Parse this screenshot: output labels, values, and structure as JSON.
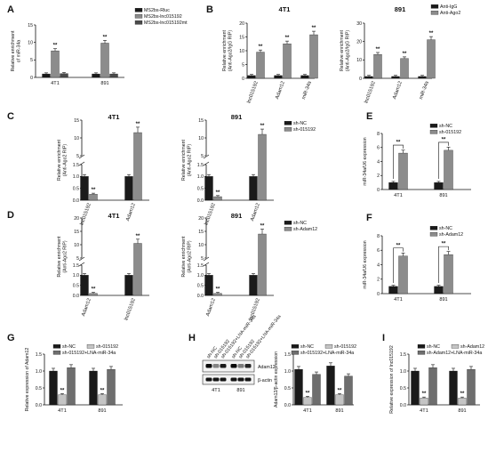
{
  "colors": {
    "black": "#1a1a1a",
    "gray": "#8c8c8c",
    "dark": "#4a4a4a",
    "light": "#c4c4c4",
    "mid": "#6e6e6e"
  },
  "chart_data": [
    {
      "id": "A",
      "letter": "A",
      "type": "bar",
      "title": "",
      "categories": [
        "4T1",
        "891"
      ],
      "series": [
        {
          "name": "MS2bs-Rluc",
          "color": "black",
          "values": [
            1.0,
            1.0
          ]
        },
        {
          "name": "MS2bs-lnc015192",
          "color": "gray",
          "values": [
            7.6,
            9.8
          ]
        },
        {
          "name": "MS2bs-lnc015192mt",
          "color": "dark",
          "values": [
            1.1,
            1.0
          ]
        }
      ],
      "sig": [
        [
          1,
          0
        ],
        [
          1,
          1
        ]
      ],
      "sigmark": "**",
      "ylabel": "Relative enrichment\nof miR-34a",
      "ylim": [
        0,
        15
      ],
      "yticks": [
        "0",
        "5",
        "10",
        "15"
      ]
    },
    {
      "id": "B1",
      "letter": "B",
      "type": "bar",
      "title": "4T1",
      "categories": [
        "lnc015192",
        "Adam12",
        "miR-34a"
      ],
      "series": [
        {
          "name": "Anti-IgG",
          "color": "black",
          "values": [
            1.0,
            1.0,
            1.0
          ]
        },
        {
          "name": "Anti-Ago2",
          "color": "gray",
          "values": [
            9.5,
            12.5,
            15.8
          ]
        }
      ],
      "sig": [
        [
          1,
          0
        ],
        [
          1,
          1
        ],
        [
          1,
          2
        ]
      ],
      "sigmark": "**",
      "ylabel": "Relative enrichment\n(Anti-Ago2/IgG RIP)",
      "ylim": [
        0,
        20
      ],
      "yticks": [
        "0",
        "5",
        "10",
        "15",
        "20"
      ]
    },
    {
      "id": "B2",
      "type": "bar",
      "title": "891",
      "categories": [
        "lnc015192",
        "Adam12",
        "miR-34a"
      ],
      "series": [
        {
          "name": "Anti-IgG",
          "color": "black",
          "values": [
            1.0,
            1.0,
            1.0
          ]
        },
        {
          "name": "Anti-Ago2",
          "color": "gray",
          "values": [
            13.0,
            10.8,
            21.0
          ]
        }
      ],
      "sig": [
        [
          1,
          0
        ],
        [
          1,
          1
        ],
        [
          1,
          2
        ]
      ],
      "sigmark": "**",
      "ylabel": "Relative enrichment\n(Anti-Ago2/IgG RIP)",
      "ylim": [
        0,
        30
      ],
      "yticks": [
        "0",
        "10",
        "20",
        "30"
      ]
    },
    {
      "id": "C1",
      "letter": "C",
      "type": "bar",
      "title": "4T1",
      "categories": [
        "lnc015192",
        "Adam12"
      ],
      "series": [
        {
          "name": "sh-NC",
          "color": "black",
          "values": [
            1.0,
            1.0
          ]
        },
        {
          "name": "sh-015192",
          "color": "gray",
          "values": [
            0.25,
            11.5
          ]
        }
      ],
      "sig": [
        [
          1,
          0
        ],
        [
          1,
          1
        ]
      ],
      "sigmark": "**",
      "broken": true,
      "ylabel": "Relative enrichment\n(Anti-Ago2 RIP)",
      "yticks": [
        "0.0",
        "0.5",
        "1.0",
        "1.5",
        "5",
        "10",
        "15"
      ]
    },
    {
      "id": "C2",
      "type": "bar",
      "title": "891",
      "categories": [
        "lnc015192",
        "Adam12"
      ],
      "series": [
        {
          "name": "sh-NC",
          "color": "black",
          "values": [
            1.0,
            1.0
          ]
        },
        {
          "name": "sh-015192",
          "color": "gray",
          "values": [
            0.15,
            11.0
          ]
        }
      ],
      "sig": [
        [
          1,
          0
        ],
        [
          1,
          1
        ]
      ],
      "sigmark": "**",
      "broken": true,
      "ylabel": "Relative enrichment\n(Anti-Ago2 RIP)",
      "yticks": [
        "0.0",
        "0.5",
        "1.0",
        "1.5",
        "5",
        "10",
        "15"
      ]
    },
    {
      "id": "D1",
      "letter": "D",
      "type": "bar",
      "title": "4T1",
      "categories": [
        "Adam12",
        "lnc015192"
      ],
      "series": [
        {
          "name": "sh-NC",
          "color": "black",
          "values": [
            1.0,
            1.0
          ]
        },
        {
          "name": "sh-Adam12",
          "color": "gray",
          "values": [
            0.1,
            10.5
          ]
        }
      ],
      "sig": [
        [
          1,
          0
        ],
        [
          1,
          1
        ]
      ],
      "sigmark": "**",
      "broken": true,
      "ylabel": "Relative enrichment\n(Anti-Ago2 RIP)",
      "yticks": [
        "0.0",
        "0.5",
        "1.0",
        "1.5",
        "5",
        "10",
        "15",
        "20"
      ]
    },
    {
      "id": "D2",
      "type": "bar",
      "title": "891",
      "categories": [
        "Adam12",
        "lnc015192"
      ],
      "series": [
        {
          "name": "sh-NC",
          "color": "black",
          "values": [
            1.0,
            1.0
          ]
        },
        {
          "name": "sh-Adam12",
          "color": "gray",
          "values": [
            0.1,
            14.0
          ]
        }
      ],
      "sig": [
        [
          1,
          0
        ],
        [
          1,
          1
        ]
      ],
      "sigmark": "**",
      "broken": true,
      "ylabel": "Relative enrichment\n(Anti-Ago2 RIP)",
      "yticks": [
        "0.0",
        "0.5",
        "1.0",
        "1.5",
        "5",
        "10",
        "15",
        "20"
      ]
    },
    {
      "id": "E",
      "letter": "E",
      "type": "bar",
      "title": "",
      "categories": [
        "4T1",
        "891"
      ],
      "series": [
        {
          "name": "sh-NC",
          "color": "black",
          "values": [
            1.0,
            1.0
          ]
        },
        {
          "name": "sh-015192",
          "color": "gray",
          "values": [
            5.2,
            5.6
          ]
        }
      ],
      "sig": [],
      "bracket": true,
      "sigmark": "**",
      "ylabel": "miR-34a/U6 expression",
      "ylim": [
        0,
        8
      ],
      "yticks": [
        "0",
        "2",
        "4",
        "6",
        "8"
      ]
    },
    {
      "id": "F",
      "letter": "F",
      "type": "bar",
      "title": "",
      "categories": [
        "4T1",
        "891"
      ],
      "series": [
        {
          "name": "sh-NC",
          "color": "black",
          "values": [
            1.0,
            1.0
          ]
        },
        {
          "name": "sh-Adam12",
          "color": "gray",
          "values": [
            5.2,
            5.4
          ]
        }
      ],
      "sig": [],
      "bracket": true,
      "sigmark": "**",
      "ylabel": "miR-34a/U6 expression",
      "ylim": [
        0,
        8
      ],
      "yticks": [
        "0",
        "2",
        "4",
        "6",
        "8"
      ]
    },
    {
      "id": "G",
      "letter": "G",
      "type": "bar",
      "title": "",
      "categories": [
        "4T1",
        "891"
      ],
      "series": [
        {
          "name": "sh-NC",
          "color": "black",
          "values": [
            1.0,
            1.0
          ]
        },
        {
          "name": "sh-015192",
          "color": "light",
          "values": [
            0.3,
            0.3
          ]
        },
        {
          "name": "sh-015192+LNA-miR-34a",
          "color": "mid",
          "values": [
            1.1,
            1.05
          ]
        }
      ],
      "sig": [
        [
          1,
          0
        ],
        [
          1,
          1
        ]
      ],
      "sigmark": "**",
      "ylabel": "Relative expression of Adam12",
      "ylim": [
        0,
        1.5
      ],
      "yticks": [
        "0.0",
        "0.5",
        "1.0",
        "1.5"
      ]
    },
    {
      "id": "H",
      "type": "bar",
      "title": "",
      "categories": [
        "4T1",
        "891"
      ],
      "series": [
        {
          "name": "sh-NC",
          "color": "black",
          "values": [
            1.05,
            1.15
          ]
        },
        {
          "name": "sh-015192",
          "color": "light",
          "values": [
            0.22,
            0.3
          ]
        },
        {
          "name": "sh-015192+LNA-miR-34a",
          "color": "mid",
          "values": [
            0.9,
            0.85
          ]
        }
      ],
      "sig": [
        [
          1,
          0
        ],
        [
          1,
          1
        ]
      ],
      "sigmark": "**",
      "ylabel": "Adam12/β-actin expression",
      "ylim": [
        0,
        1.5
      ],
      "yticks": [
        "0.0",
        "0.5",
        "1.0",
        "1.5"
      ]
    },
    {
      "id": "I",
      "letter": "I",
      "type": "bar",
      "title": "",
      "categories": [
        "4T1",
        "891"
      ],
      "series": [
        {
          "name": "sh-NC",
          "color": "black",
          "values": [
            1.0,
            1.0
          ]
        },
        {
          "name": "sh-Adam12",
          "color": "light",
          "values": [
            0.2,
            0.2
          ]
        },
        {
          "name": "sh-Adam12+LNA-miR-34a",
          "color": "mid",
          "values": [
            1.1,
            1.05
          ]
        }
      ],
      "sig": [
        [
          1,
          0
        ],
        [
          1,
          1
        ]
      ],
      "sigmark": "**",
      "ylabel": "Relative expression of lnc015192",
      "ylim": [
        0,
        1.5
      ],
      "yticks": [
        "0.0",
        "0.5",
        "1.0",
        "1.5"
      ]
    }
  ],
  "blot": {
    "letter": "H",
    "lanes": [
      "sh-NC",
      "sh-015192",
      "sh-015192+LNA-miR-34a",
      "sh-NC",
      "sh-015192",
      "sh-015192+LNA-miR-34a"
    ],
    "bands": [
      "Adam12",
      "β-actin"
    ],
    "cells": [
      "4T1",
      "891"
    ]
  }
}
